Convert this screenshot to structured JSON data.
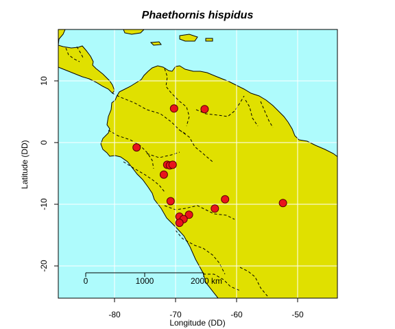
{
  "title": "Phaethornis hispidus",
  "colors": {
    "ocean": "#aefbfc",
    "land": "#e0e000",
    "grid": "#ffffff",
    "border": "#000000",
    "point_fill": "#e8141c",
    "point_stroke": "#5a0000"
  },
  "chart_data": {
    "type": "scatter",
    "title": "Phaethornis hispidus",
    "xlabel": "Longitude (DD)",
    "ylabel": "Latitude (DD)",
    "xlim": [
      -89,
      -48
    ],
    "ylim": [
      -25,
      18.5
    ],
    "x_ticks": [
      -80,
      -70,
      -60,
      -50
    ],
    "y_ticks": [
      10,
      0,
      -10,
      -20
    ],
    "x_tick_labels": [
      "-80",
      "-70",
      "-60",
      "-50"
    ],
    "y_tick_labels": [
      "10",
      "0",
      "-10",
      "-20"
    ],
    "grid": true,
    "points": [
      {
        "lon": -72.0,
        "lat": 5.7
      },
      {
        "lon": -67.5,
        "lat": 5.6
      },
      {
        "lon": -77.5,
        "lat": -0.6
      },
      {
        "lon": -73.0,
        "lat": -3.4
      },
      {
        "lon": -72.6,
        "lat": -3.5
      },
      {
        "lon": -72.2,
        "lat": -3.4
      },
      {
        "lon": -73.5,
        "lat": -5.0
      },
      {
        "lon": -72.5,
        "lat": -9.3
      },
      {
        "lon": -64.5,
        "lat": -9.0
      },
      {
        "lon": -56.0,
        "lat": -9.6
      },
      {
        "lon": -66.0,
        "lat": -10.5
      },
      {
        "lon": -69.8,
        "lat": -11.5
      },
      {
        "lon": -71.2,
        "lat": -11.8
      },
      {
        "lon": -70.6,
        "lat": -12.2
      },
      {
        "lon": -71.2,
        "lat": -12.8
      }
    ],
    "scale_bar": {
      "labels": [
        "0",
        "1000",
        "2000 km"
      ]
    }
  }
}
